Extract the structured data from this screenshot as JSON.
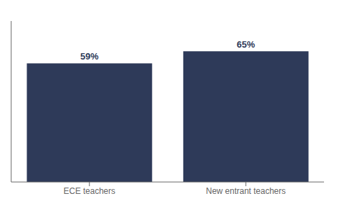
{
  "chart_data": {
    "type": "bar",
    "categories": [
      "ECE teachers",
      "New entrant teachers"
    ],
    "values": [
      59,
      65
    ],
    "value_labels": [
      "59%",
      "65%"
    ],
    "data_labels": true,
    "color": "#2E3A59",
    "ylim": [
      0,
      80
    ],
    "tick_labels": "x",
    "grid": false
  }
}
